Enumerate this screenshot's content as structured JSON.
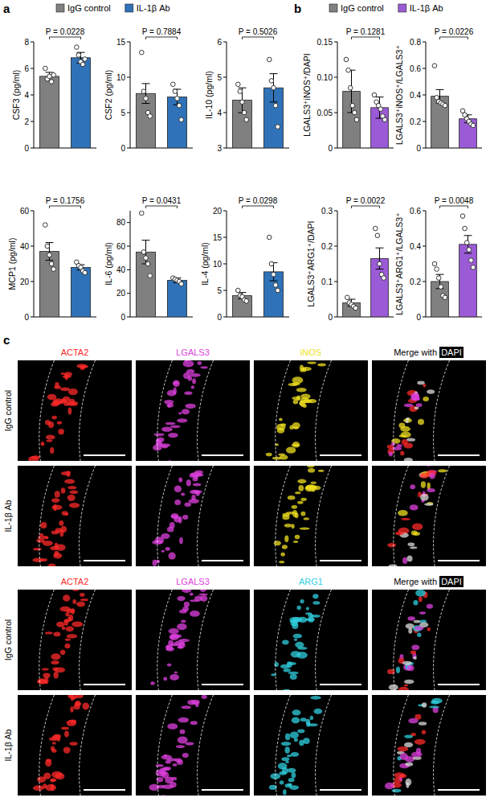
{
  "panel_labels": [
    "a",
    "b",
    "c"
  ],
  "legends": [
    {
      "entries": [
        {
          "name": "IgG control",
          "color": "#808080"
        },
        {
          "name": "IL-1β Ab",
          "color": "#2f72b8"
        }
      ]
    },
    {
      "entries": [
        {
          "name": "IgG control",
          "color": "#808080"
        },
        {
          "name": "IL-1β Ab",
          "color": "#9b5bd6"
        }
      ]
    }
  ],
  "chart_data": [
    {
      "type": "bar",
      "y_label": "CSF3 (pg/ml)",
      "annotation": "P = 0.0228",
      "ylim": [
        0,
        8
      ],
      "yticks": [
        0,
        2,
        4,
        6,
        8
      ],
      "categories": [
        null
      ],
      "series": [
        {
          "color": "#808080",
          "values": [
            5.4
          ],
          "errors": [
            0.3
          ],
          "points": [
            6.0,
            5.2,
            5.4,
            5.0,
            5.5
          ]
        },
        {
          "color": "#2f72b8",
          "values": [
            6.8
          ],
          "errors": [
            0.4
          ],
          "points": [
            7.6,
            7.0,
            6.5,
            6.3,
            6.7
          ]
        }
      ]
    },
    {
      "type": "bar",
      "y_label": "CSF2 (pg/ml)",
      "annotation": "P = 0.7884",
      "ylim": [
        0,
        15
      ],
      "yticks": [
        0,
        5,
        10,
        15
      ],
      "categories": [
        null
      ],
      "series": [
        {
          "color": "#808080",
          "values": [
            7.7
          ],
          "errors": [
            1.4
          ],
          "points": [
            13.5,
            8.0,
            7.0,
            5.0,
            4.5
          ]
        },
        {
          "color": "#2f72b8",
          "values": [
            7.2
          ],
          "errors": [
            1.1
          ],
          "points": [
            9.0,
            8.0,
            7.0,
            6.0,
            4.0
          ]
        }
      ]
    },
    {
      "type": "bar",
      "y_label": "IL-10 (pg/ml)",
      "annotation": "P = 0.5026",
      "ylim": [
        3,
        6
      ],
      "yticks": [
        3,
        4,
        5,
        6
      ],
      "categories": [
        null
      ],
      "series": [
        {
          "color": "#808080",
          "values": [
            4.35
          ],
          "errors": [
            0.35
          ],
          "points": [
            4.8,
            4.6,
            4.3,
            4.0,
            3.8
          ]
        },
        {
          "color": "#2f72b8",
          "values": [
            4.7
          ],
          "errors": [
            0.4
          ],
          "points": [
            5.5,
            4.9,
            4.7,
            4.2,
            3.6
          ]
        }
      ]
    },
    {
      "type": "bar",
      "y_label": "MCP1 (pg/ml)",
      "annotation": "P = 0.1756",
      "ylim": [
        0,
        60
      ],
      "yticks": [
        0,
        20,
        40,
        60
      ],
      "categories": [
        null
      ],
      "series": [
        {
          "color": "#808080",
          "values": [
            37
          ],
          "errors": [
            5
          ],
          "points": [
            52,
            40,
            35,
            30,
            27
          ]
        },
        {
          "color": "#2f72b8",
          "values": [
            28
          ],
          "errors": [
            1.5
          ],
          "points": [
            31,
            29,
            28,
            26,
            25
          ]
        }
      ]
    },
    {
      "type": "bar",
      "y_label": "IL-6 (pg/ml)",
      "annotation": "P = 0.0431",
      "ylim": [
        0,
        90
      ],
      "yticks": [
        0,
        20,
        40,
        60,
        80
      ],
      "categories": [
        null
      ],
      "series": [
        {
          "color": "#808080",
          "values": [
            55
          ],
          "errors": [
            10
          ],
          "points": [
            88,
            55,
            50,
            45,
            35
          ]
        },
        {
          "color": "#2f72b8",
          "values": [
            31
          ],
          "errors": [
            2
          ],
          "points": [
            33,
            32,
            31,
            30,
            28
          ]
        }
      ]
    },
    {
      "type": "bar",
      "y_label": "IL-4 (pg/ml)",
      "annotation": "P = 0.0298",
      "ylim": [
        0,
        20
      ],
      "yticks": [
        0,
        5,
        10,
        15,
        20
      ],
      "categories": [
        null
      ],
      "series": [
        {
          "color": "#808080",
          "values": [
            4
          ],
          "errors": [
            0.6
          ],
          "points": [
            5.0,
            4.0,
            3.8,
            3.2,
            3.0
          ]
        },
        {
          "color": "#2f72b8",
          "values": [
            8.5
          ],
          "errors": [
            1.7
          ],
          "points": [
            15,
            10,
            8,
            6,
            5
          ]
        }
      ]
    },
    {
      "type": "bar",
      "y_label": "LGALS3⁺iNOS⁺/DAPI",
      "annotation": "P = 0.1281",
      "ylim": [
        0,
        0.15
      ],
      "yticks": [
        0,
        {
          "value": 0.05,
          "label": "0.05"
        },
        {
          "value": 0.1,
          "label": "0.10"
        },
        {
          "value": 0.15,
          "label": "0.15"
        }
      ],
      "categories": [
        null
      ],
      "series": [
        {
          "color": "#808080",
          "values": [
            0.08
          ],
          "errors": [
            0.03
          ],
          "points": [
            0.125,
            0.11,
            0.085,
            0.06,
            0.05,
            0.04
          ]
        },
        {
          "color": "#9b5bd6",
          "values": [
            0.057
          ],
          "errors": [
            0.015
          ],
          "points": [
            0.075,
            0.065,
            0.06,
            0.055,
            0.045,
            0.04
          ]
        }
      ]
    },
    {
      "type": "bar",
      "y_label": "LGALS3⁺iNOS⁺/LGALS3⁺",
      "annotation": "P = 0.0226",
      "ylim": [
        0,
        0.8
      ],
      "yticks": [
        0,
        0.2,
        0.4,
        0.6,
        0.8
      ],
      "categories": [
        null
      ],
      "series": [
        {
          "color": "#808080",
          "values": [
            0.39
          ],
          "errors": [
            0.05
          ],
          "points": [
            0.62,
            0.38,
            0.35,
            0.34,
            0.33,
            0.32
          ]
        },
        {
          "color": "#9b5bd6",
          "values": [
            0.22
          ],
          "errors": [
            0.03
          ],
          "points": [
            0.28,
            0.25,
            0.22,
            0.2,
            0.18,
            0.17
          ]
        }
      ]
    },
    {
      "type": "bar",
      "y_label": "LGALS3⁺ARG1⁺/DAPI",
      "annotation": "P = 0.0022",
      "ylim": [
        0,
        0.3
      ],
      "yticks": [
        0,
        0.1,
        0.2,
        0.3
      ],
      "categories": [
        null
      ],
      "series": [
        {
          "color": "#808080",
          "values": [
            0.04
          ],
          "errors": [
            0.01
          ],
          "points": [
            0.055,
            0.04,
            0.035,
            0.03,
            0.025
          ]
        },
        {
          "color": "#9b5bd6",
          "values": [
            0.165
          ],
          "errors": [
            0.03
          ],
          "points": [
            0.25,
            0.23,
            0.15,
            0.12,
            0.11
          ]
        }
      ]
    },
    {
      "type": "bar",
      "y_label": "LGALS3⁺ARG1⁺/LGALS3⁺",
      "annotation": "P = 0.0048",
      "ylim": [
        0,
        0.6
      ],
      "yticks": [
        0,
        0.2,
        0.4,
        0.6
      ],
      "categories": [
        null
      ],
      "series": [
        {
          "color": "#808080",
          "values": [
            0.2
          ],
          "errors": [
            0.04
          ],
          "points": [
            0.3,
            0.27,
            0.22,
            0.17,
            0.12,
            0.11
          ]
        },
        {
          "color": "#9b5bd6",
          "values": [
            0.41
          ],
          "errors": [
            0.05
          ],
          "points": [
            0.57,
            0.5,
            0.42,
            0.38,
            0.32,
            0.28
          ]
        }
      ]
    }
  ],
  "images": {
    "blocks": [
      {
        "channels": [
          {
            "name": "ACTA2",
            "color": "#ff2a2a"
          },
          {
            "name": "LGALS3",
            "color": "#e040e0"
          },
          {
            "name": "iNOS",
            "color": "#f0e020"
          }
        ],
        "merge_label": "Merge with",
        "dapi_label": "DAPI",
        "rows": [
          "IgG control",
          "IL-1β Ab"
        ]
      },
      {
        "channels": [
          {
            "name": "ACTA2",
            "color": "#ff2a2a"
          },
          {
            "name": "LGALS3",
            "color": "#e040e0"
          },
          {
            "name": "ARG1",
            "color": "#30d0e0"
          }
        ],
        "merge_label": "Merge with",
        "dapi_label": "DAPI",
        "rows": [
          "IgG control",
          "IL-1β Ab"
        ]
      }
    ]
  }
}
